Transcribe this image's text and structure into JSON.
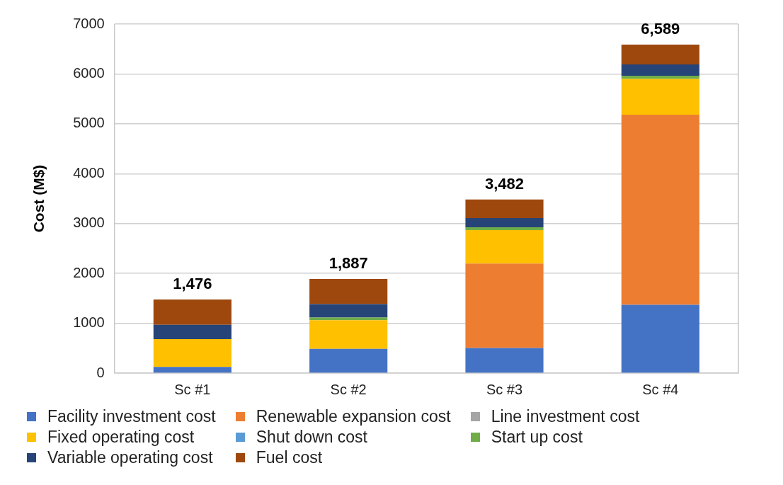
{
  "chart_data": {
    "type": "bar",
    "stacked": true,
    "ylabel": "Cost (M$)",
    "categories": [
      "Sc #1",
      "Sc #2",
      "Sc #3",
      "Sc #4"
    ],
    "series": [
      {
        "name": "Facility investment cost",
        "color": "#4472c4",
        "values": [
          125,
          485,
          504,
          1369
        ]
      },
      {
        "name": "Renewable expansion cost",
        "color": "#ed7d31",
        "values": [
          0,
          0,
          1693,
          3813
        ]
      },
      {
        "name": "Line investment cost",
        "color": "#a5a5a5",
        "values": [
          0,
          0,
          0,
          0
        ]
      },
      {
        "name": "Fixed operating cost",
        "color": "#ffc000",
        "values": [
          555,
          575,
          670,
          718
        ]
      },
      {
        "name": "Shut down cost",
        "color": "#5b9bd5",
        "values": [
          0,
          0,
          0,
          0
        ]
      },
      {
        "name": "Start up cost",
        "color": "#70ad47",
        "values": [
          0,
          55,
          58,
          64
        ]
      },
      {
        "name": "Variable operating cost",
        "color": "#264478",
        "values": [
          290,
          269,
          185,
          227
        ]
      },
      {
        "name": "Fuel cost",
        "color": "#9e480e",
        "values": [
          506,
          503,
          372,
          398
        ]
      }
    ],
    "totals": [
      "1,476",
      "1,887",
      "3,482",
      "6,589"
    ],
    "ylim": [
      0,
      7000
    ],
    "yticks": [
      0,
      1000,
      2000,
      3000,
      4000,
      5000,
      6000,
      7000
    ],
    "grid": "y",
    "legend": "bottom"
  }
}
